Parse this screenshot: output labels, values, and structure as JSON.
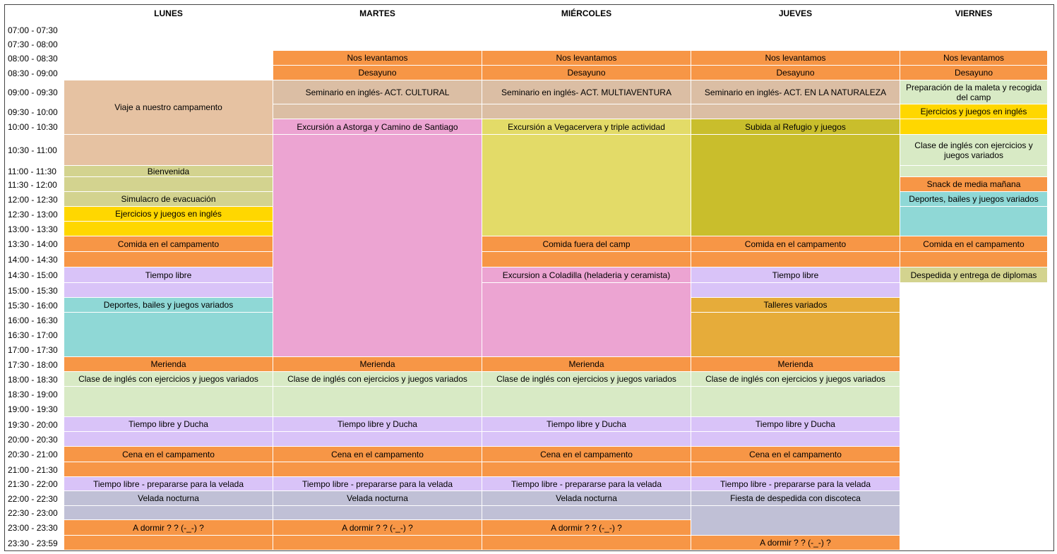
{
  "days": [
    "LUNES",
    "MARTES",
    "MIÉRCOLES",
    "JUEVES",
    "VIERNES"
  ],
  "times": [
    "07:00 - 07:30",
    "07:30 - 08:00",
    "08:00 - 08:30",
    "08:30 - 09:00",
    "09:00 - 09:30",
    "09:30 - 10:00",
    "10:00 - 10:30",
    "10:30 - 11:00",
    "11:00 - 11:30",
    "11:30 - 12:00",
    "12:00 - 12:30",
    "12:30 - 13:00",
    "13:00 - 13:30",
    "13:30 - 14:00",
    "14:00 - 14:30",
    "14:30 - 15:00",
    "15:00 - 15:30",
    "15:30 - 16:00",
    "16:00 - 16:30",
    "16:30 - 17:00",
    "17:00 - 17:30",
    "17:30 - 18:00",
    "18:00 - 18:30",
    "18:30 - 19:00",
    "19:00 - 19:30",
    "19:30 - 20:00",
    "20:00 - 20:30",
    "20:30 - 21:00",
    "21:00 - 21:30",
    "21:30 - 22:00",
    "22:00 - 22:30",
    "22:30 - 23:00",
    "23:00 - 23:30",
    "23:30 - 23:59"
  ],
  "colors": {
    "orange": "#f79646",
    "peach": "#e6c2a2",
    "tan": "#dbbea4",
    "khaki": "#d3d38f",
    "yellow": "#ffd700",
    "pink": "#eca4d2",
    "paleYellow": "#e3db68",
    "olive": "#c9be2c",
    "lightGreen": "#d8eac5",
    "lavender": "#d9c3f8",
    "teal": "#8fd8d6",
    "ochre": "#e6ac3a",
    "greyBlue": "#c0c0d6"
  },
  "schedule": [
    [
      {
        "start": 4,
        "rows": 3,
        "text": "Viaje a nuestro campamento",
        "color": "peach"
      },
      {
        "start": 7,
        "rows": 1,
        "text": "",
        "color": "peach"
      },
      {
        "start": 8,
        "rows": 1,
        "text": "Bienvenida",
        "color": "khaki"
      },
      {
        "start": 9,
        "rows": 1,
        "text": "",
        "color": "khaki"
      },
      {
        "start": 10,
        "rows": 1,
        "text": "Simulacro de evacuación",
        "color": "khaki"
      },
      {
        "start": 11,
        "rows": 1,
        "text": "Ejercicios y juegos en inglés",
        "color": "yellow"
      },
      {
        "start": 12,
        "rows": 1,
        "text": "",
        "color": "yellow"
      },
      {
        "start": 13,
        "rows": 1,
        "text": "Comida en el campamento",
        "color": "orange"
      },
      {
        "start": 14,
        "rows": 1,
        "text": "",
        "color": "orange"
      },
      {
        "start": 15,
        "rows": 1,
        "text": "Tiempo libre",
        "color": "lavender"
      },
      {
        "start": 16,
        "rows": 1,
        "text": "",
        "color": "lavender"
      },
      {
        "start": 17,
        "rows": 1,
        "text": "Deportes, bailes y juegos variados",
        "color": "teal"
      },
      {
        "start": 18,
        "rows": 3,
        "text": "",
        "color": "teal"
      },
      {
        "start": 21,
        "rows": 1,
        "text": "Merienda",
        "color": "orange"
      },
      {
        "start": 22,
        "rows": 1,
        "text": "Clase de inglés con ejercicios y juegos variados",
        "color": "lightGreen"
      },
      {
        "start": 23,
        "rows": 2,
        "text": "",
        "color": "lightGreen"
      },
      {
        "start": 25,
        "rows": 1,
        "text": "Tiempo libre y Ducha",
        "color": "lavender"
      },
      {
        "start": 26,
        "rows": 1,
        "text": "",
        "color": "lavender"
      },
      {
        "start": 27,
        "rows": 1,
        "text": "Cena en el campamento",
        "color": "orange"
      },
      {
        "start": 28,
        "rows": 1,
        "text": "",
        "color": "orange"
      },
      {
        "start": 29,
        "rows": 1,
        "text": "Tiempo libre - prepararse para la velada",
        "color": "lavender"
      },
      {
        "start": 30,
        "rows": 1,
        "text": "Velada nocturna",
        "color": "greyBlue"
      },
      {
        "start": 31,
        "rows": 1,
        "text": "",
        "color": "greyBlue"
      },
      {
        "start": 32,
        "rows": 1,
        "text": "A dormir ? ? (-_-) ?",
        "color": "orange"
      },
      {
        "start": 33,
        "rows": 1,
        "text": "",
        "color": "orange"
      }
    ],
    [
      {
        "start": 2,
        "rows": 1,
        "text": "Nos levantamos",
        "color": "orange"
      },
      {
        "start": 3,
        "rows": 1,
        "text": "Desayuno",
        "color": "orange"
      },
      {
        "start": 4,
        "rows": 1,
        "text": "Seminario en inglés- ACT. CULTURAL",
        "color": "tan"
      },
      {
        "start": 5,
        "rows": 1,
        "text": "",
        "color": "tan"
      },
      {
        "start": 6,
        "rows": 1,
        "text": "Excursión a Astorga y Camino de Santiago",
        "color": "pink"
      },
      {
        "start": 7,
        "rows": 14,
        "text": "",
        "color": "pink"
      },
      {
        "start": 21,
        "rows": 1,
        "text": "Merienda",
        "color": "orange"
      },
      {
        "start": 22,
        "rows": 1,
        "text": "Clase de inglés con ejercicios y juegos variados",
        "color": "lightGreen"
      },
      {
        "start": 23,
        "rows": 2,
        "text": "",
        "color": "lightGreen"
      },
      {
        "start": 25,
        "rows": 1,
        "text": "Tiempo libre y Ducha",
        "color": "lavender"
      },
      {
        "start": 26,
        "rows": 1,
        "text": "",
        "color": "lavender"
      },
      {
        "start": 27,
        "rows": 1,
        "text": "Cena en el campamento",
        "color": "orange"
      },
      {
        "start": 28,
        "rows": 1,
        "text": "",
        "color": "orange"
      },
      {
        "start": 29,
        "rows": 1,
        "text": "Tiempo libre - prepararse para la velada",
        "color": "lavender"
      },
      {
        "start": 30,
        "rows": 1,
        "text": "Velada nocturna",
        "color": "greyBlue"
      },
      {
        "start": 31,
        "rows": 1,
        "text": "",
        "color": "greyBlue"
      },
      {
        "start": 32,
        "rows": 1,
        "text": "A dormir ? ? (-_-) ?",
        "color": "orange"
      },
      {
        "start": 33,
        "rows": 1,
        "text": "",
        "color": "orange"
      }
    ],
    [
      {
        "start": 2,
        "rows": 1,
        "text": "Nos levantamos",
        "color": "orange"
      },
      {
        "start": 3,
        "rows": 1,
        "text": "Desayuno",
        "color": "orange"
      },
      {
        "start": 4,
        "rows": 1,
        "text": "Seminario en inglés- ACT. MULTIAVENTURA",
        "color": "tan"
      },
      {
        "start": 5,
        "rows": 1,
        "text": "",
        "color": "tan"
      },
      {
        "start": 6,
        "rows": 1,
        "text": "Excursión a Vegacervera y triple actividad",
        "color": "paleYellow"
      },
      {
        "start": 7,
        "rows": 6,
        "text": "",
        "color": "paleYellow"
      },
      {
        "start": 13,
        "rows": 1,
        "text": "Comida fuera del camp",
        "color": "orange"
      },
      {
        "start": 14,
        "rows": 1,
        "text": "",
        "color": "orange"
      },
      {
        "start": 15,
        "rows": 1,
        "text": "Excursion a Coladilla (heladeria y ceramista)",
        "color": "pink"
      },
      {
        "start": 16,
        "rows": 5,
        "text": "",
        "color": "pink"
      },
      {
        "start": 21,
        "rows": 1,
        "text": "Merienda",
        "color": "orange"
      },
      {
        "start": 22,
        "rows": 1,
        "text": "Clase de inglés con ejercicios y juegos variados",
        "color": "lightGreen"
      },
      {
        "start": 23,
        "rows": 2,
        "text": "",
        "color": "lightGreen"
      },
      {
        "start": 25,
        "rows": 1,
        "text": "Tiempo libre y Ducha",
        "color": "lavender"
      },
      {
        "start": 26,
        "rows": 1,
        "text": "",
        "color": "lavender"
      },
      {
        "start": 27,
        "rows": 1,
        "text": "Cena en el campamento",
        "color": "orange"
      },
      {
        "start": 28,
        "rows": 1,
        "text": "",
        "color": "orange"
      },
      {
        "start": 29,
        "rows": 1,
        "text": "Tiempo libre - prepararse para la velada",
        "color": "lavender"
      },
      {
        "start": 30,
        "rows": 1,
        "text": "Velada nocturna",
        "color": "greyBlue"
      },
      {
        "start": 31,
        "rows": 1,
        "text": "",
        "color": "greyBlue"
      },
      {
        "start": 32,
        "rows": 1,
        "text": "A dormir ? ? (-_-) ?",
        "color": "orange"
      },
      {
        "start": 33,
        "rows": 1,
        "text": "",
        "color": "orange"
      }
    ],
    [
      {
        "start": 2,
        "rows": 1,
        "text": "Nos levantamos",
        "color": "orange"
      },
      {
        "start": 3,
        "rows": 1,
        "text": "Desayuno",
        "color": "orange"
      },
      {
        "start": 4,
        "rows": 1,
        "text": "Seminario en inglés- ACT. EN LA NATURALEZA",
        "color": "tan"
      },
      {
        "start": 5,
        "rows": 1,
        "text": "",
        "color": "tan"
      },
      {
        "start": 6,
        "rows": 1,
        "text": "Subida al Refugio y juegos",
        "color": "olive"
      },
      {
        "start": 7,
        "rows": 6,
        "text": "",
        "color": "olive"
      },
      {
        "start": 13,
        "rows": 1,
        "text": "Comida en el campamento",
        "color": "orange"
      },
      {
        "start": 14,
        "rows": 1,
        "text": "",
        "color": "orange"
      },
      {
        "start": 15,
        "rows": 1,
        "text": "Tiempo libre",
        "color": "lavender"
      },
      {
        "start": 16,
        "rows": 1,
        "text": "",
        "color": "lavender"
      },
      {
        "start": 17,
        "rows": 1,
        "text": "Talleres variados",
        "color": "ochre"
      },
      {
        "start": 18,
        "rows": 3,
        "text": "",
        "color": "ochre"
      },
      {
        "start": 21,
        "rows": 1,
        "text": "Merienda",
        "color": "orange"
      },
      {
        "start": 22,
        "rows": 1,
        "text": "Clase de inglés con ejercicios y juegos variados",
        "color": "lightGreen"
      },
      {
        "start": 23,
        "rows": 2,
        "text": "",
        "color": "lightGreen"
      },
      {
        "start": 25,
        "rows": 1,
        "text": "Tiempo libre y Ducha",
        "color": "lavender"
      },
      {
        "start": 26,
        "rows": 1,
        "text": "",
        "color": "lavender"
      },
      {
        "start": 27,
        "rows": 1,
        "text": "Cena en el campamento",
        "color": "orange"
      },
      {
        "start": 28,
        "rows": 1,
        "text": "",
        "color": "orange"
      },
      {
        "start": 29,
        "rows": 1,
        "text": "Tiempo libre - prepararse para la velada",
        "color": "lavender"
      },
      {
        "start": 30,
        "rows": 1,
        "text": "Fiesta de despedida con discoteca",
        "color": "greyBlue"
      },
      {
        "start": 31,
        "rows": 2,
        "text": "",
        "color": "greyBlue"
      },
      {
        "start": 33,
        "rows": 1,
        "text": "A dormir ? ? (-_-) ?",
        "color": "orange"
      }
    ],
    [
      {
        "start": 2,
        "rows": 1,
        "text": "Nos levantamos",
        "color": "orange"
      },
      {
        "start": 3,
        "rows": 1,
        "text": "Desayuno",
        "color": "orange"
      },
      {
        "start": 4,
        "rows": 1,
        "text": "Preparación de la maleta y recogida del camp",
        "color": "lightGreen"
      },
      {
        "start": 5,
        "rows": 1,
        "text": "Ejercicios y juegos en inglés",
        "color": "yellow"
      },
      {
        "start": 6,
        "rows": 1,
        "text": "",
        "color": "yellow"
      },
      {
        "start": 7,
        "rows": 1,
        "text": "Clase de inglés con ejercicios y juegos variados",
        "color": "lightGreen"
      },
      {
        "start": 8,
        "rows": 1,
        "text": "",
        "color": "lightGreen"
      },
      {
        "start": 9,
        "rows": 1,
        "text": "Snack de media mañana",
        "color": "orange"
      },
      {
        "start": 10,
        "rows": 1,
        "text": "Deportes, bailes y juegos variados",
        "color": "teal"
      },
      {
        "start": 11,
        "rows": 2,
        "text": "",
        "color": "teal"
      },
      {
        "start": 13,
        "rows": 1,
        "text": "Comida en el campamento",
        "color": "orange"
      },
      {
        "start": 14,
        "rows": 1,
        "text": "",
        "color": "orange"
      },
      {
        "start": 15,
        "rows": 1,
        "text": "Despedida y entrega de diplomas",
        "color": "khaki"
      }
    ]
  ]
}
